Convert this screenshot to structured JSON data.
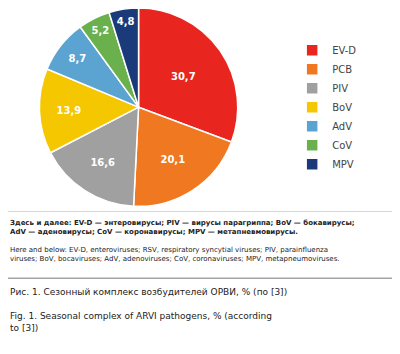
{
  "chart_data": {
    "type": "pie",
    "categories": [
      "EV-D",
      "PCB",
      "PIV",
      "BoV",
      "AdV",
      "CoV",
      "MPV"
    ],
    "values": [
      30.7,
      20.1,
      16.6,
      13.9,
      8.7,
      5.2,
      4.8
    ],
    "value_labels": [
      "30,7",
      "20,1",
      "16,6",
      "13,9",
      "8,7",
      "5,2",
      "4,8"
    ],
    "colors": [
      "#e8251e",
      "#f07820",
      "#a0a0a0",
      "#f5c700",
      "#5ba3d0",
      "#6ab04c",
      "#1b3a7a"
    ],
    "data_labels": true,
    "legend": "right",
    "annotations": [
      "Здесь и далее: EV-D — энтеровирусы; PIV — вирусы парагриппа; BoV — бокавирусы;\nAdV — аденовирусы; CoV — коронавирусы; MPV — метапневмовирусы.",
      "Here and below: EV-D, enteroviruses; RSV, respiratory syncytial viruses; PIV, parainfluenza\nviruses; BoV, bocaviruses; AdV, adenoviruses; CoV, coronaviruses; MPV, metapneumoviruses.",
      "Рис. 1. Сезонный комплекс возбудителей ОРВИ, % (по [3])",
      "Fig. 1. Seasonal complex of ARVI pathogens, % (according\nto [3])"
    ]
  }
}
